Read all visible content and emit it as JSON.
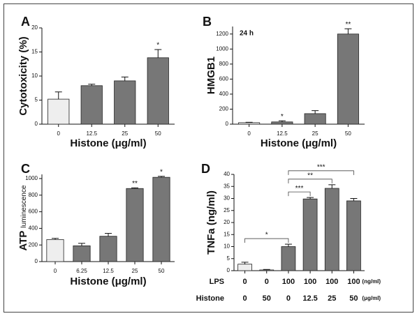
{
  "chart_data": [
    {
      "type": "bar",
      "label": "A",
      "categories": [
        "0",
        "12.5",
        "25",
        "50"
      ],
      "values": [
        5.2,
        8.0,
        9.0,
        13.8
      ],
      "errors": [
        1.5,
        0.3,
        0.8,
        1.7
      ],
      "colors": [
        "#eeeeee",
        "#777777",
        "#777777",
        "#777777"
      ],
      "significance": [
        null,
        null,
        null,
        "*"
      ],
      "ylim": [
        0,
        20
      ],
      "yticks": [
        0,
        5,
        10,
        15,
        20
      ],
      "ylabel": "Cytotoxicity (%)",
      "xlabel": "Histone (μg/ml)"
    },
    {
      "type": "bar",
      "label": "B",
      "categories": [
        "0",
        "12.5",
        "25",
        "50"
      ],
      "values": [
        20,
        30,
        140,
        1200
      ],
      "errors": [
        5,
        15,
        40,
        70
      ],
      "colors": [
        "#eeeeee",
        "#777777",
        "#777777",
        "#777777"
      ],
      "significance": [
        null,
        "*",
        null,
        "**"
      ],
      "annotation": "24 h",
      "ylim": [
        0,
        1300
      ],
      "yticks": [
        0,
        200,
        400,
        600,
        800,
        1000,
        1200
      ],
      "ylabel": "HMGB1",
      "xlabel": "Histone (μg/ml)"
    },
    {
      "type": "bar",
      "label": "C",
      "categories": [
        "0",
        "6.25",
        "12.5",
        "25",
        "50"
      ],
      "values": [
        265,
        190,
        305,
        880,
        1015
      ],
      "errors": [
        15,
        30,
        35,
        8,
        12
      ],
      "colors": [
        "#eeeeee",
        "#777777",
        "#777777",
        "#777777",
        "#777777"
      ],
      "significance": [
        null,
        null,
        null,
        "**",
        "*"
      ],
      "ylim": [
        0,
        1050
      ],
      "yticks": [
        0,
        200,
        400,
        600,
        800,
        1000
      ],
      "ylabel": "ATP",
      "ylabel_sub": "luminescence",
      "xlabel": "Histone (μg/ml)"
    },
    {
      "type": "bar",
      "label": "D",
      "values": [
        2.7,
        0.3,
        10,
        29.8,
        34.2,
        29
      ],
      "errors": [
        0.8,
        0.2,
        1,
        0.6,
        1.5,
        1
      ],
      "colors": [
        "#eeeeee",
        "#ffffff",
        "#777777",
        "#777777",
        "#777777",
        "#777777"
      ],
      "comparisons": [
        {
          "groups": [
            0,
            2
          ],
          "label": "*"
        },
        {
          "groups": [
            2,
            3
          ],
          "label": "***"
        },
        {
          "groups": [
            2,
            4
          ],
          "label": "**"
        },
        {
          "groups": [
            2,
            5
          ],
          "label": "***"
        }
      ],
      "ylim": [
        0,
        40
      ],
      "yticks": [
        0,
        5,
        10,
        15,
        20,
        25,
        30,
        35,
        40
      ],
      "ylabel": "TNFa (ng/ml)",
      "conditions": [
        {
          "name": "LPS",
          "values": [
            0,
            0,
            100,
            100,
            100,
            100
          ],
          "unit": "(ng/ml)"
        },
        {
          "name": "Histone",
          "values": [
            0,
            50,
            0,
            12.5,
            25,
            50
          ],
          "unit": "(μg/ml)"
        }
      ]
    }
  ]
}
